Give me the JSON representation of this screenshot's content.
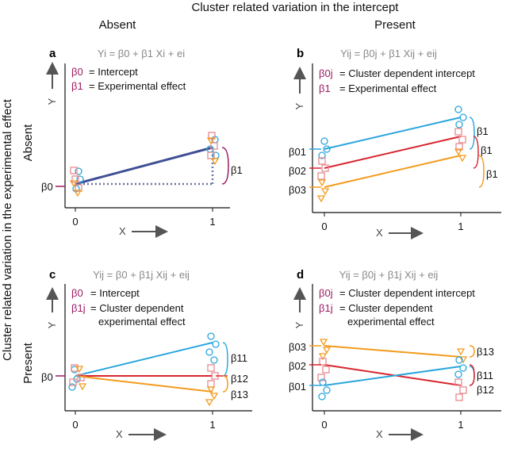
{
  "figure": {
    "title": "Cluster related variation in the intercept",
    "col_headers": [
      "Absent",
      "Present"
    ],
    "row_title": "Cluster related variation in the experimental effect",
    "row_headers": [
      "Absent",
      "Present"
    ]
  },
  "colors": {
    "purple": "#9b1b62",
    "navy": "#3f4f95",
    "cyan": "#2aa6dd",
    "red": "#d7262f",
    "orange": "#f39b1d",
    "dotted": "#6b74a6",
    "axis": "#111111",
    "arrow": "#555555"
  },
  "axes": {
    "x_label": "X",
    "y_label": "Y",
    "x_ticks": [
      "0",
      "1"
    ]
  },
  "panels": {
    "a": {
      "label": "a",
      "equation": "Yi = β0 + β1 Xi + ei",
      "legend": [
        {
          "sym": "β0",
          "text": "= Intercept"
        },
        {
          "sym": "β1",
          "text": "= Experimental effect"
        }
      ],
      "annotations": {
        "intercept": "β0",
        "effect": "β1"
      }
    },
    "b": {
      "label": "b",
      "equation": "Yij = β0j + β1 Xij + eij",
      "legend": [
        {
          "sym": "β0j",
          "text": "= Cluster dependent intercept"
        },
        {
          "sym": "β1",
          "text": "= Experimental effect"
        }
      ],
      "annotations": {
        "intercepts": [
          "β01",
          "β02",
          "β03"
        ],
        "effects": [
          "β1",
          "β1",
          "β1"
        ]
      }
    },
    "c": {
      "label": "c",
      "equation": "Yij = β0 + β1j Xij + eij",
      "legend": [
        {
          "sym": "β0",
          "text": "= Intercept"
        },
        {
          "sym": "β1j",
          "text": "= Cluster dependent"
        },
        {
          "sym": "",
          "text": "experimental effect"
        }
      ],
      "annotations": {
        "intercept": "β0",
        "effects": [
          "β11",
          "β12",
          "β13"
        ]
      }
    },
    "d": {
      "label": "d",
      "equation": "Yij = β0j + β1j Xij + eij",
      "legend": [
        {
          "sym": "β0j",
          "text": "= Cluster dependent intercept"
        },
        {
          "sym": "β1j",
          "text": "= Cluster dependent"
        },
        {
          "sym": "",
          "text": "experimental effect"
        }
      ],
      "annotations": {
        "intercepts": [
          "β03",
          "β02",
          "β01"
        ],
        "effects": [
          "β13",
          "β11",
          "β12"
        ]
      }
    }
  }
}
